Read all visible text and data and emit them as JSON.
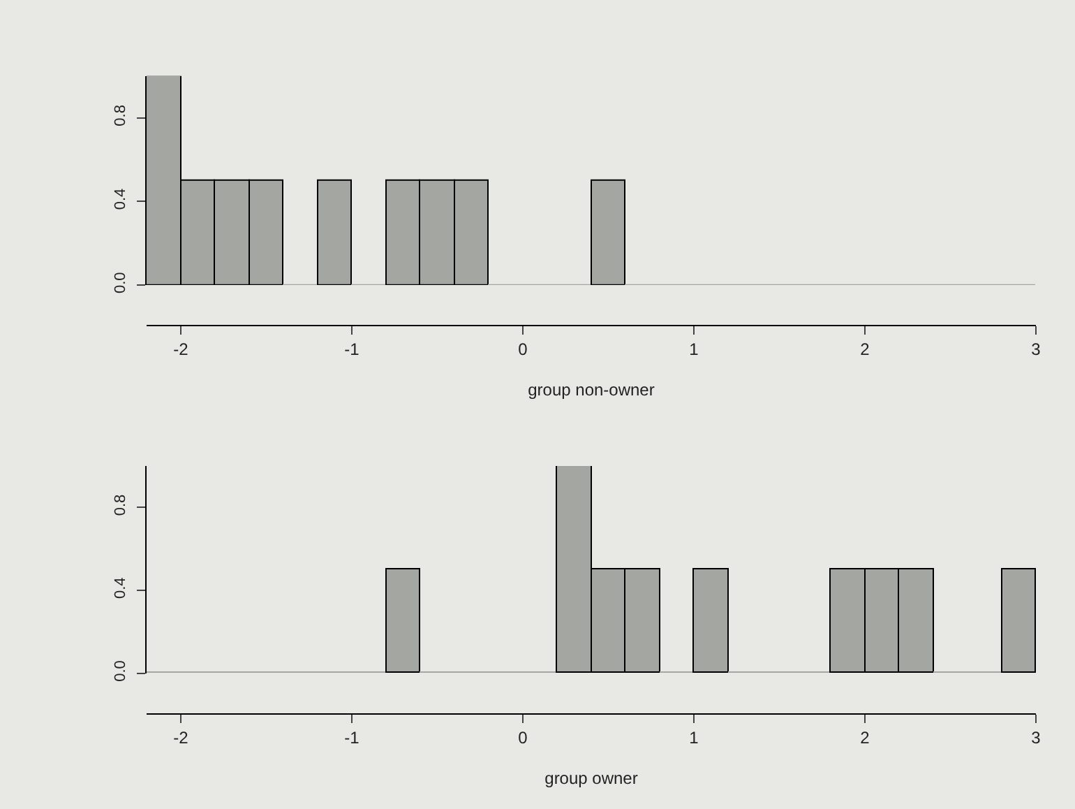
{
  "chart_data": [
    {
      "type": "histogram",
      "xlabel": "group non-owner",
      "color": "#a4a6a2",
      "bins": [
        -2.2,
        -2.0,
        -1.8,
        -1.6,
        -1.4,
        -1.2,
        -1.0,
        -0.8,
        -0.6,
        -0.4,
        -0.2,
        0.0,
        0.2,
        0.4,
        0.6,
        0.8,
        1.0,
        1.2,
        1.4,
        1.6,
        1.8,
        2.0,
        2.2,
        2.4,
        2.6,
        2.8,
        3.0
      ],
      "values": [
        1.0,
        0.5,
        0.5,
        0.5,
        0,
        0.5,
        0,
        0.5,
        0.5,
        0.5,
        0,
        0,
        0,
        0.5,
        0,
        0,
        0,
        0,
        0,
        0,
        0,
        0,
        0,
        0,
        0,
        0
      ],
      "xlim": [
        -2.2,
        3.0
      ],
      "xticks": [
        -2,
        -1,
        0,
        1,
        2,
        3
      ],
      "ylim": [
        0,
        1.0
      ],
      "yticks": [
        {
          "value": 0,
          "label": "0.0"
        },
        {
          "value": 0.4,
          "label": "0.4"
        },
        {
          "value": 0.8,
          "label": "0.8"
        }
      ],
      "grid": false
    },
    {
      "type": "histogram",
      "xlabel": "group owner",
      "color": "#a4a6a2",
      "bins": [
        -2.2,
        -2.0,
        -1.8,
        -1.6,
        -1.4,
        -1.2,
        -1.0,
        -0.8,
        -0.6,
        -0.4,
        -0.2,
        0.0,
        0.2,
        0.4,
        0.6,
        0.8,
        1.0,
        1.2,
        1.4,
        1.6,
        1.8,
        2.0,
        2.2,
        2.4,
        2.6,
        2.8,
        3.0
      ],
      "values": [
        0,
        0,
        0,
        0,
        0,
        0,
        0,
        0.5,
        0,
        0,
        0,
        0,
        1.0,
        0.5,
        0.5,
        0,
        0.5,
        0,
        0,
        0,
        0.5,
        0.5,
        0.5,
        0,
        0,
        0.5
      ],
      "xlim": [
        -2.2,
        3.0
      ],
      "xticks": [
        -2,
        -1,
        0,
        1,
        2,
        3
      ],
      "ylim": [
        0,
        1.0
      ],
      "yticks": [
        {
          "value": 0,
          "label": "0.0"
        },
        {
          "value": 0.4,
          "label": "0.4"
        },
        {
          "value": 0.8,
          "label": "0.8"
        }
      ],
      "grid": false
    }
  ]
}
